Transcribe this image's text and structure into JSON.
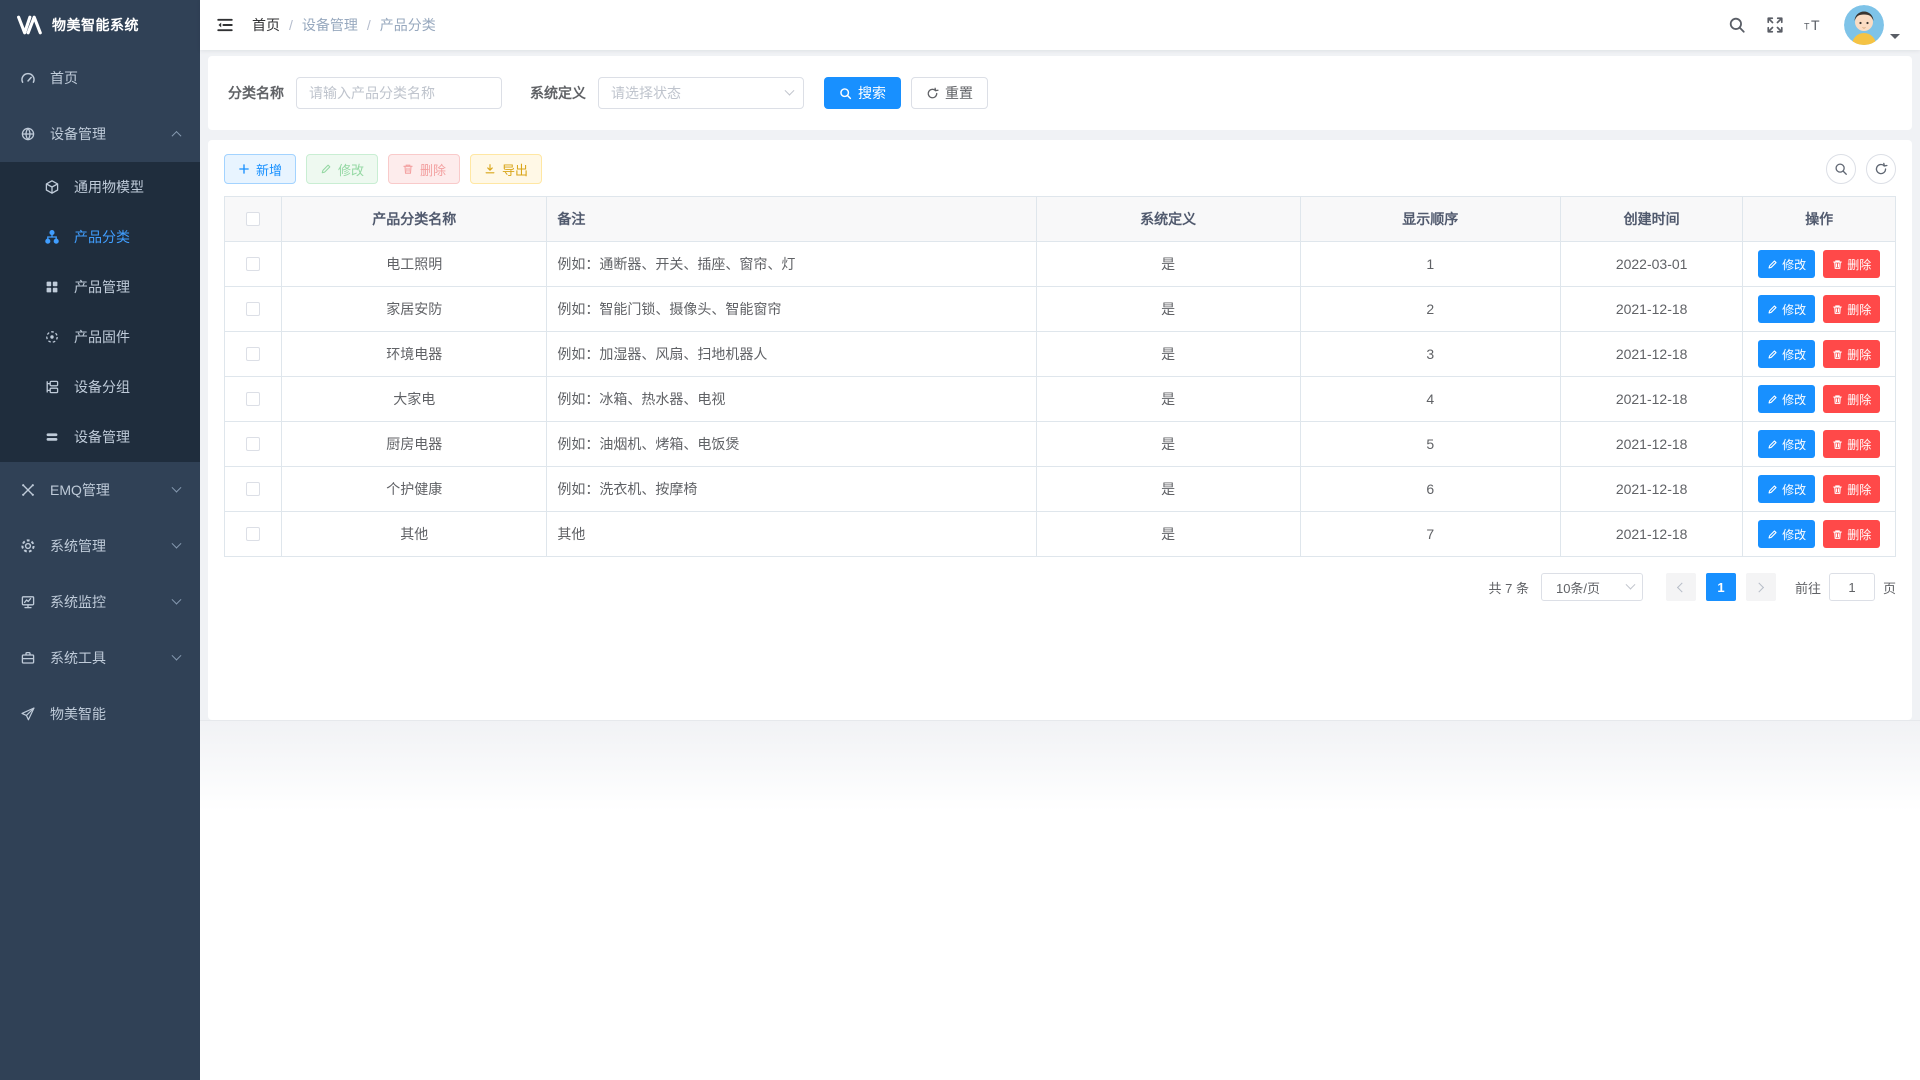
{
  "app": {
    "title": "物美智能系统"
  },
  "navbar": {
    "breadcrumb": [
      "首页",
      "设备管理",
      "产品分类"
    ],
    "separator": "/"
  },
  "sidebar": {
    "items": [
      {
        "label": "首页",
        "icon": "dashboard-icon"
      },
      {
        "label": "设备管理",
        "icon": "device-layers-icon",
        "state": "expanded"
      },
      {
        "label": "通用物模型",
        "icon": "cube-icon"
      },
      {
        "label": "产品分类",
        "icon": "sitemap-icon",
        "active": true
      },
      {
        "label": "产品管理",
        "icon": "grid-icon"
      },
      {
        "label": "产品固件",
        "icon": "firmware-icon"
      },
      {
        "label": "设备分组",
        "icon": "device-group-icon"
      },
      {
        "label": "设备管理",
        "icon": "device-list-icon"
      },
      {
        "label": "EMQ管理",
        "icon": "emq-icon",
        "state": "collapsed"
      },
      {
        "label": "系统管理",
        "icon": "gear-icon",
        "state": "collapsed"
      },
      {
        "label": "系统监控",
        "icon": "monitor-icon",
        "state": "collapsed"
      },
      {
        "label": "系统工具",
        "icon": "toolbox-icon",
        "state": "collapsed"
      },
      {
        "label": "物美智能",
        "icon": "paper-plane-icon"
      }
    ]
  },
  "filters": {
    "category_label": "分类名称",
    "category_placeholder": "请输入产品分类名称",
    "category_value": "",
    "system_label": "系统定义",
    "system_placeholder": "请选择状态",
    "search_label": "搜索",
    "reset_label": "重置"
  },
  "toolbar": {
    "add_label": "新增",
    "edit_label": "修改",
    "delete_label": "删除",
    "export_label": "导出"
  },
  "table": {
    "headers": [
      "产品分类名称",
      "备注",
      "系统定义",
      "显示顺序",
      "创建时间",
      "操作"
    ],
    "row_edit_label": "修改",
    "row_delete_label": "删除",
    "rows": [
      {
        "name": "电工照明",
        "remark": "例如：通断器、开关、插座、窗帘、灯",
        "system": "是",
        "order": "1",
        "created": "2022-03-01"
      },
      {
        "name": "家居安防",
        "remark": "例如：智能门锁、摄像头、智能窗帘",
        "system": "是",
        "order": "2",
        "created": "2021-12-18"
      },
      {
        "name": "环境电器",
        "remark": "例如：加湿器、风扇、扫地机器人",
        "system": "是",
        "order": "3",
        "created": "2021-12-18"
      },
      {
        "name": "大家电",
        "remark": "例如：冰箱、热水器、电视",
        "system": "是",
        "order": "4",
        "created": "2021-12-18"
      },
      {
        "name": "厨房电器",
        "remark": "例如：油烟机、烤箱、电饭煲",
        "system": "是",
        "order": "5",
        "created": "2021-12-18"
      },
      {
        "name": "个护健康",
        "remark": "例如：洗衣机、按摩椅",
        "system": "是",
        "order": "6",
        "created": "2021-12-18"
      },
      {
        "name": "其他",
        "remark": "其他",
        "system": "是",
        "order": "7",
        "created": "2021-12-18"
      }
    ]
  },
  "pagination": {
    "total_text": "共 7 条",
    "page_size_label": "10条/页",
    "current_page": "1",
    "goto_label": "前往",
    "goto_value": "1",
    "page_unit_label": "页"
  },
  "colors": {
    "primary": "#1890ff",
    "danger": "#ff4949",
    "sidebar_bg": "#304156",
    "submenu_bg": "#1f2d3d",
    "menu_text": "#bfcbd9",
    "menu_active_text": "#409eff",
    "table_border": "#dfe6ec",
    "table_header_bg": "#f8f8f9"
  }
}
